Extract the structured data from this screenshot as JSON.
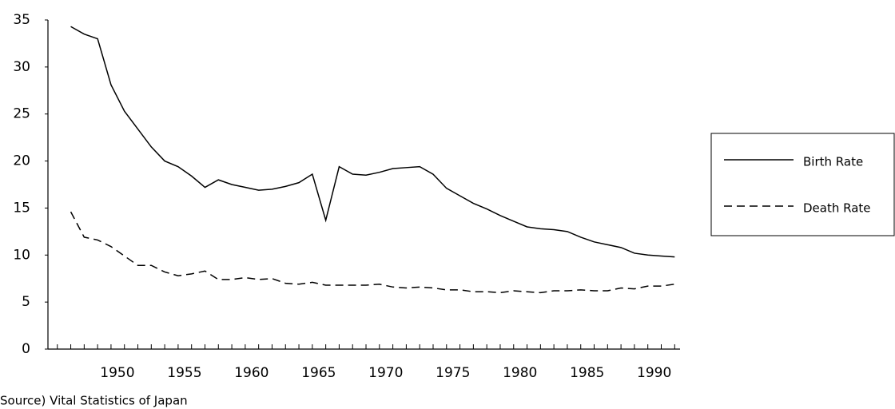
{
  "chart_data": {
    "type": "line",
    "source": "Source) Vital Statistics of Japan",
    "x": [
      1947,
      1948,
      1949,
      1950,
      1951,
      1952,
      1953,
      1954,
      1955,
      1956,
      1957,
      1958,
      1959,
      1960,
      1961,
      1962,
      1963,
      1964,
      1965,
      1966,
      1967,
      1968,
      1969,
      1970,
      1971,
      1972,
      1973,
      1974,
      1975,
      1976,
      1977,
      1978,
      1979,
      1980,
      1981,
      1982,
      1983,
      1984,
      1985,
      1986,
      1987,
      1988,
      1989,
      1990,
      1991,
      1992
    ],
    "series": [
      {
        "name": "Birth Rate",
        "color": "#000000",
        "dash": "solid",
        "values": [
          34.3,
          33.5,
          33.0,
          28.1,
          25.3,
          23.4,
          21.5,
          20.0,
          19.4,
          18.4,
          17.2,
          18.0,
          17.5,
          17.2,
          16.9,
          17.0,
          17.3,
          17.7,
          18.6,
          13.7,
          19.4,
          18.6,
          18.5,
          18.8,
          19.2,
          19.3,
          19.4,
          18.6,
          17.1,
          16.3,
          15.5,
          14.9,
          14.2,
          13.6,
          13.0,
          12.8,
          12.7,
          12.5,
          11.9,
          11.4,
          11.1,
          10.8,
          10.2,
          10.0,
          9.9,
          9.8
        ]
      },
      {
        "name": "Death Rate",
        "color": "#000000",
        "dash": "dashed",
        "values": [
          14.6,
          11.9,
          11.6,
          10.9,
          9.9,
          8.9,
          8.9,
          8.2,
          7.8,
          8.0,
          8.3,
          7.4,
          7.4,
          7.6,
          7.4,
          7.5,
          7.0,
          6.9,
          7.1,
          6.8,
          6.8,
          6.8,
          6.8,
          6.9,
          6.6,
          6.5,
          6.6,
          6.5,
          6.3,
          6.3,
          6.1,
          6.1,
          6.0,
          6.2,
          6.1,
          6.0,
          6.2,
          6.2,
          6.3,
          6.2,
          6.2,
          6.5,
          6.4,
          6.7,
          6.7,
          6.9
        ]
      }
    ],
    "xlim": [
      1945.3,
      1992.4
    ],
    "xticks": [
      1950,
      1955,
      1960,
      1965,
      1970,
      1975,
      1980,
      1985,
      1990
    ],
    "xminorticks": [
      1946,
      1947,
      1948,
      1949,
      1950,
      1951,
      1952,
      1953,
      1954,
      1955,
      1956,
      1957,
      1958,
      1959,
      1960,
      1961,
      1962,
      1963,
      1964,
      1965,
      1966,
      1967,
      1968,
      1969,
      1970,
      1971,
      1972,
      1973,
      1974,
      1975,
      1976,
      1977,
      1978,
      1979,
      1980,
      1981,
      1982,
      1983,
      1984,
      1985,
      1986,
      1987,
      1988,
      1989,
      1990,
      1991,
      1992
    ],
    "ylim": [
      0,
      35
    ],
    "yticks": [
      0,
      5,
      10,
      15,
      20,
      25,
      30,
      35
    ],
    "grid": false,
    "legend": "right"
  }
}
